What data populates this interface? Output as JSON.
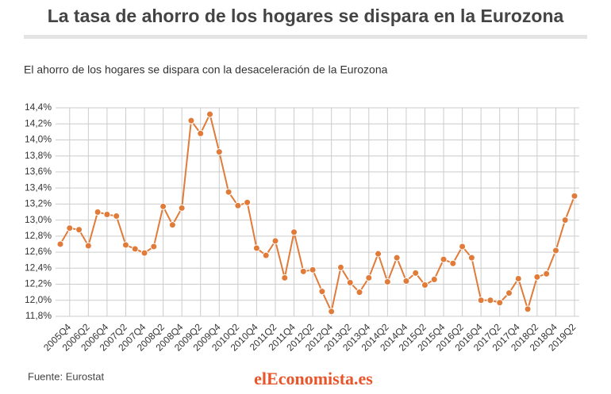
{
  "chart_data": {
    "type": "line",
    "title": "La tasa de ahorro de los hogares se dispara en la Eurozona",
    "subtitle": "El ahorro de los hogares se dispara con la desaceleración de la Eurozona",
    "source": "Fuente: Eurostat",
    "brand": "elEconomista.es",
    "categories": [
      null,
      "2005Q4",
      null,
      "2006Q2",
      null,
      "2006Q4",
      null,
      "2007Q2",
      null,
      "2007Q4",
      null,
      "2008Q2",
      null,
      "2008Q4",
      null,
      "2009Q2",
      null,
      "2009Q4",
      null,
      "2010Q2",
      null,
      "2010Q4",
      null,
      "2011Q2",
      null,
      "2011Q4",
      null,
      "2012Q2",
      null,
      "2012Q4",
      null,
      "2013Q2",
      null,
      "2013Q4",
      null,
      "2014Q2",
      null,
      "2014Q4",
      null,
      "2015Q2",
      null,
      "2015Q4",
      null,
      "2016Q2",
      null,
      "2016Q4",
      null,
      "2017Q2",
      null,
      "2017Q4",
      null,
      "2018Q2",
      null,
      "2018Q4",
      null,
      "2019Q2"
    ],
    "series": [
      {
        "name": "Tasa de ahorro",
        "color": "#e07b39",
        "values": [
          12.7,
          12.9,
          12.88,
          12.68,
          13.1,
          13.07,
          13.05,
          12.69,
          12.64,
          12.59,
          12.67,
          13.17,
          12.94,
          13.15,
          14.24,
          14.08,
          14.32,
          13.85,
          13.35,
          13.18,
          13.22,
          12.65,
          12.56,
          12.74,
          12.28,
          12.85,
          12.36,
          12.38,
          12.11,
          11.86,
          12.41,
          12.22,
          12.1,
          12.28,
          12.58,
          12.23,
          12.53,
          12.24,
          12.34,
          12.19,
          12.26,
          12.51,
          12.46,
          12.67,
          12.53,
          12.0,
          12.0,
          11.97,
          12.09,
          12.27,
          11.89,
          12.29,
          12.33,
          12.62,
          13.0,
          13.3
        ]
      }
    ],
    "ylim": [
      11.8,
      14.4
    ],
    "yticks": [
      {
        "value": 11.8,
        "label": "11,8%"
      },
      {
        "value": 12.0,
        "label": "12,0%"
      },
      {
        "value": 12.2,
        "label": "12,2%"
      },
      {
        "value": 12.4,
        "label": "12,4%"
      },
      {
        "value": 12.6,
        "label": "12,6%"
      },
      {
        "value": 12.8,
        "label": "12,8%"
      },
      {
        "value": 13.0,
        "label": "13,0%"
      },
      {
        "value": 13.2,
        "label": "13,2%"
      },
      {
        "value": 13.4,
        "label": "13,4%"
      },
      {
        "value": 13.6,
        "label": "13,6%"
      },
      {
        "value": 13.8,
        "label": "13,8%"
      },
      {
        "value": 14.0,
        "label": "14,0%"
      },
      {
        "value": 14.2,
        "label": "14,2%"
      },
      {
        "value": 14.4,
        "label": "14,4%"
      }
    ],
    "grid": true
  }
}
